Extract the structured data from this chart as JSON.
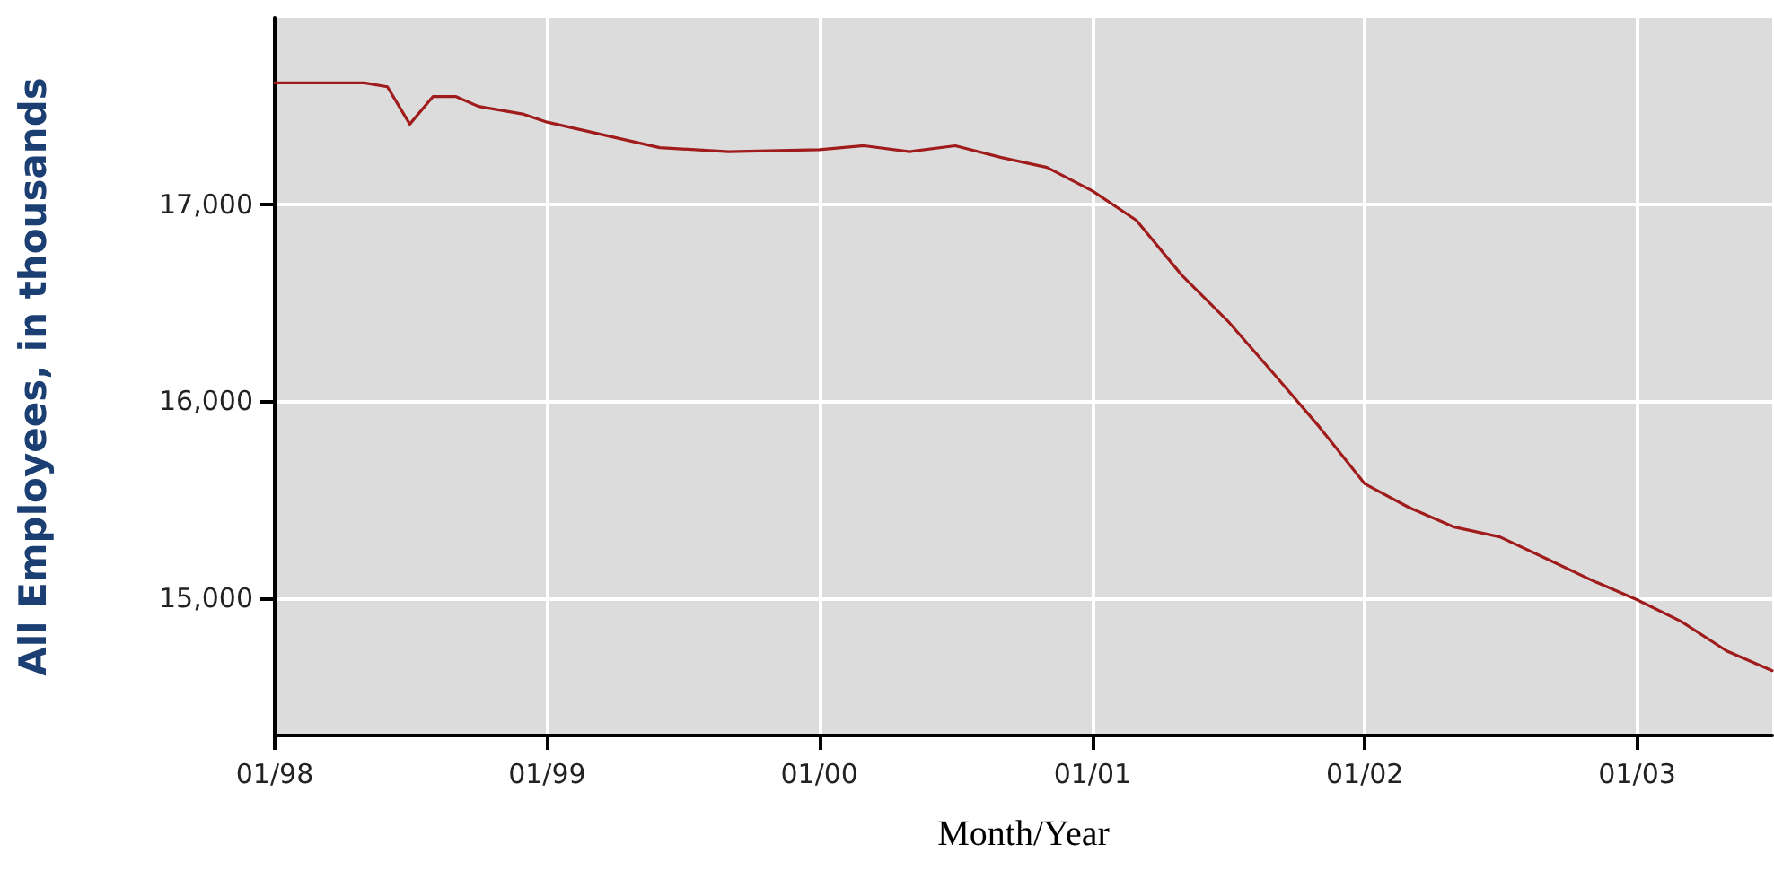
{
  "chart_data": {
    "type": "line",
    "xlabel": "Month/Year",
    "ylabel": "All Employees, in thousands",
    "x": [
      "1998-01",
      "1998-05",
      "1998-06",
      "1998-07",
      "1998-08",
      "1998-09",
      "1998-10",
      "1998-12",
      "1999-01",
      "1999-06",
      "1999-09",
      "2000-01",
      "2000-03",
      "2000-05",
      "2000-07",
      "2000-09",
      "2000-11",
      "2001-01",
      "2001-03",
      "2001-05",
      "2001-07",
      "2001-09",
      "2001-11",
      "2002-01",
      "2002-03",
      "2002-05",
      "2002-07",
      "2002-09",
      "2002-11",
      "2003-01",
      "2003-03",
      "2003-05",
      "2003-07"
    ],
    "series": [
      {
        "color": "#a01c1c",
        "values": [
          17620,
          17620,
          17600,
          17410,
          17550,
          17550,
          17500,
          17460,
          17420,
          17290,
          17270,
          17280,
          17300,
          17270,
          17300,
          17240,
          17190,
          17070,
          16920,
          16640,
          16410,
          16140,
          15870,
          15580,
          15460,
          15360,
          15310,
          15200,
          15090,
          14990,
          14880,
          14730,
          14630
        ]
      }
    ],
    "xlim": [
      "1998-01",
      "2003-07"
    ],
    "xticks": [
      {
        "value": "1998-01",
        "label": "01/98"
      },
      {
        "value": "1999-01",
        "label": "01/99"
      },
      {
        "value": "2000-01",
        "label": "01/00"
      },
      {
        "value": "2001-01",
        "label": "01/01"
      },
      {
        "value": "2002-01",
        "label": "01/02"
      },
      {
        "value": "2003-01",
        "label": "01/03"
      }
    ],
    "ylim": [
      14300,
      17950
    ],
    "yticks": [
      {
        "value": 15000,
        "label": "15,000"
      },
      {
        "value": 16000,
        "label": "16,000"
      },
      {
        "value": 17000,
        "label": "17,000"
      }
    ],
    "grid": true,
    "marker": "none",
    "line_style": "solid"
  }
}
